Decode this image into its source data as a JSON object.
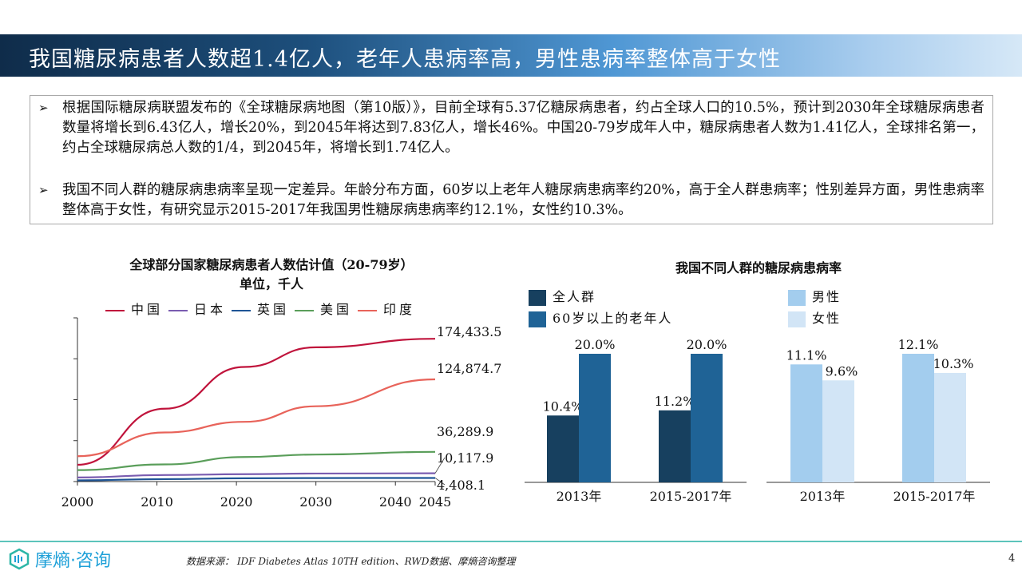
{
  "header": {
    "title": "我国糖尿病患者人数超1.4亿人，老年人患病率高，男性患病率整体高于女性"
  },
  "bullets": [
    {
      "icon": "arrow-bullet-icon",
      "text": "根据国际糖尿病联盟发布的《全球糖尿病地图（第10版）》，目前全球有5.37亿糖尿病患者，约占全球人口的10.5%，预计到2030年全球糖尿病患者数量将增长到6.43亿人，增长20%，到2045年将达到7.83亿人，增长46%。中国20-79岁成年人中，糖尿病患者人数为1.41亿人，全球排名第一，约占全球糖尿病总人数的1/4，到2045年，将增长到1.74亿人。"
    },
    {
      "icon": "arrow-bullet-icon",
      "text": "我国不同人群的糖尿病患病率呈现一定差异。年龄分布方面，60岁以上老年人糖尿病患病率约20%，高于全人群患病率；性别差异方面，男性患病率整体高于女性，有研究显示2015-2017年我国男性糖尿病患病率约12.1%，女性约10.3%。"
    }
  ],
  "chart_data": [
    {
      "type": "line",
      "title": "全球部分国家糖尿病患者人数估计值（20-79岁）",
      "subtitle": "单位，千人",
      "xlabel": "",
      "ylabel": "",
      "x": [
        2000,
        2011,
        2021,
        2030,
        2045
      ],
      "x_ticks": [
        "2000",
        "2010",
        "2020",
        "2030",
        "2040",
        "2045"
      ],
      "x_tick_values": [
        2000,
        2010,
        2020,
        2030,
        2040,
        2045
      ],
      "xlim": [
        2000,
        2045
      ],
      "ylim": [
        0,
        200000
      ],
      "y_ticks": [
        0,
        50000,
        100000,
        150000,
        200000
      ],
      "y_tick_labels_visible": false,
      "legend_position": "top",
      "series": [
        {
          "name": "中国",
          "color": "#c0143c",
          "values": [
            20500,
            89000,
            140000,
            164000,
            174433.5
          ],
          "end_label": "174,433.5"
        },
        {
          "name": "日本",
          "color": "#7a5cb0",
          "values": [
            5000,
            8000,
            9000,
            9800,
            10117.9
          ],
          "end_label": "10,117.9"
        },
        {
          "name": "英国",
          "color": "#1f5596",
          "values": [
            1500,
            3000,
            4000,
            4300,
            4408.1
          ],
          "end_label": "4,408.1"
        },
        {
          "name": "美国",
          "color": "#5a9e5a",
          "values": [
            14000,
            21000,
            30000,
            33000,
            36289.9
          ],
          "end_label": "36,289.9"
        },
        {
          "name": "印度",
          "color": "#e8635a",
          "values": [
            31000,
            60000,
            73000,
            92000,
            124874.7
          ],
          "end_label": "124,874.7"
        }
      ]
    },
    {
      "type": "bar",
      "title": "我国不同人群的糖尿病患病率",
      "categories": [
        "2013年",
        "2015-2017年"
      ],
      "ylim": [
        0,
        25
      ],
      "legend_position": "top-left",
      "series": [
        {
          "name": "全人群",
          "color": "#17405f",
          "values": [
            10.4,
            11.2
          ],
          "labels": [
            "10.4%",
            "11.2%"
          ]
        },
        {
          "name": "60岁以上的老年人",
          "color": "#1f6396",
          "values": [
            20.0,
            20.0
          ],
          "labels": [
            "20.0%",
            "20.0%"
          ]
        }
      ]
    },
    {
      "type": "bar",
      "title": "",
      "categories": [
        "2013年",
        "2015-2017年"
      ],
      "ylim": [
        0,
        13.5
      ],
      "legend_position": "top-left",
      "series": [
        {
          "name": "男性",
          "color": "#a3cdee",
          "values": [
            11.1,
            12.1
          ],
          "labels": [
            "11.1%",
            "12.1%"
          ]
        },
        {
          "name": "女性",
          "color": "#d2e5f6",
          "values": [
            9.6,
            10.3
          ],
          "labels": [
            "9.6%",
            "10.3%"
          ]
        }
      ]
    }
  ],
  "footer": {
    "logo_text": "摩熵·咨询",
    "source": "数据来源： IDF Diabetes Atlas 10TH edition、RWD数据、摩熵咨询整理",
    "page": "4"
  }
}
